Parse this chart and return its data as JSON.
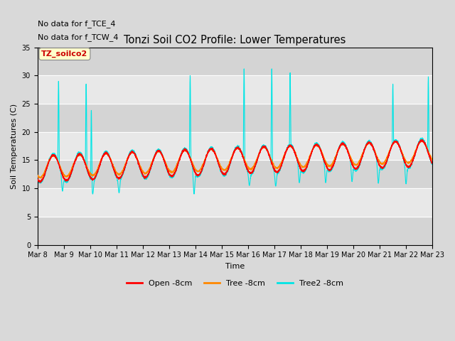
{
  "title": "Tonzi Soil CO2 Profile: Lower Temperatures",
  "xlabel": "Time",
  "ylabel": "Soil Temperatures (C)",
  "ylim": [
    0,
    35
  ],
  "yticks": [
    0,
    5,
    10,
    15,
    20,
    25,
    30,
    35
  ],
  "background_color": "#d9d9d9",
  "plot_bg_color": "#d9d9d9",
  "annotation_lines": [
    "No data for f_TCE_4",
    "No data for f_TCW_4"
  ],
  "legend_box_label": "TZ_soilco2",
  "legend_box_color": "#ffffcc",
  "series_colors": [
    "#ff0000",
    "#ff8800",
    "#00e5e5"
  ],
  "series_labels": [
    "Open -8cm",
    "Tree -8cm",
    "Tree2 -8cm"
  ],
  "n_days": 15,
  "start_day": 8,
  "samples_per_day": 288
}
